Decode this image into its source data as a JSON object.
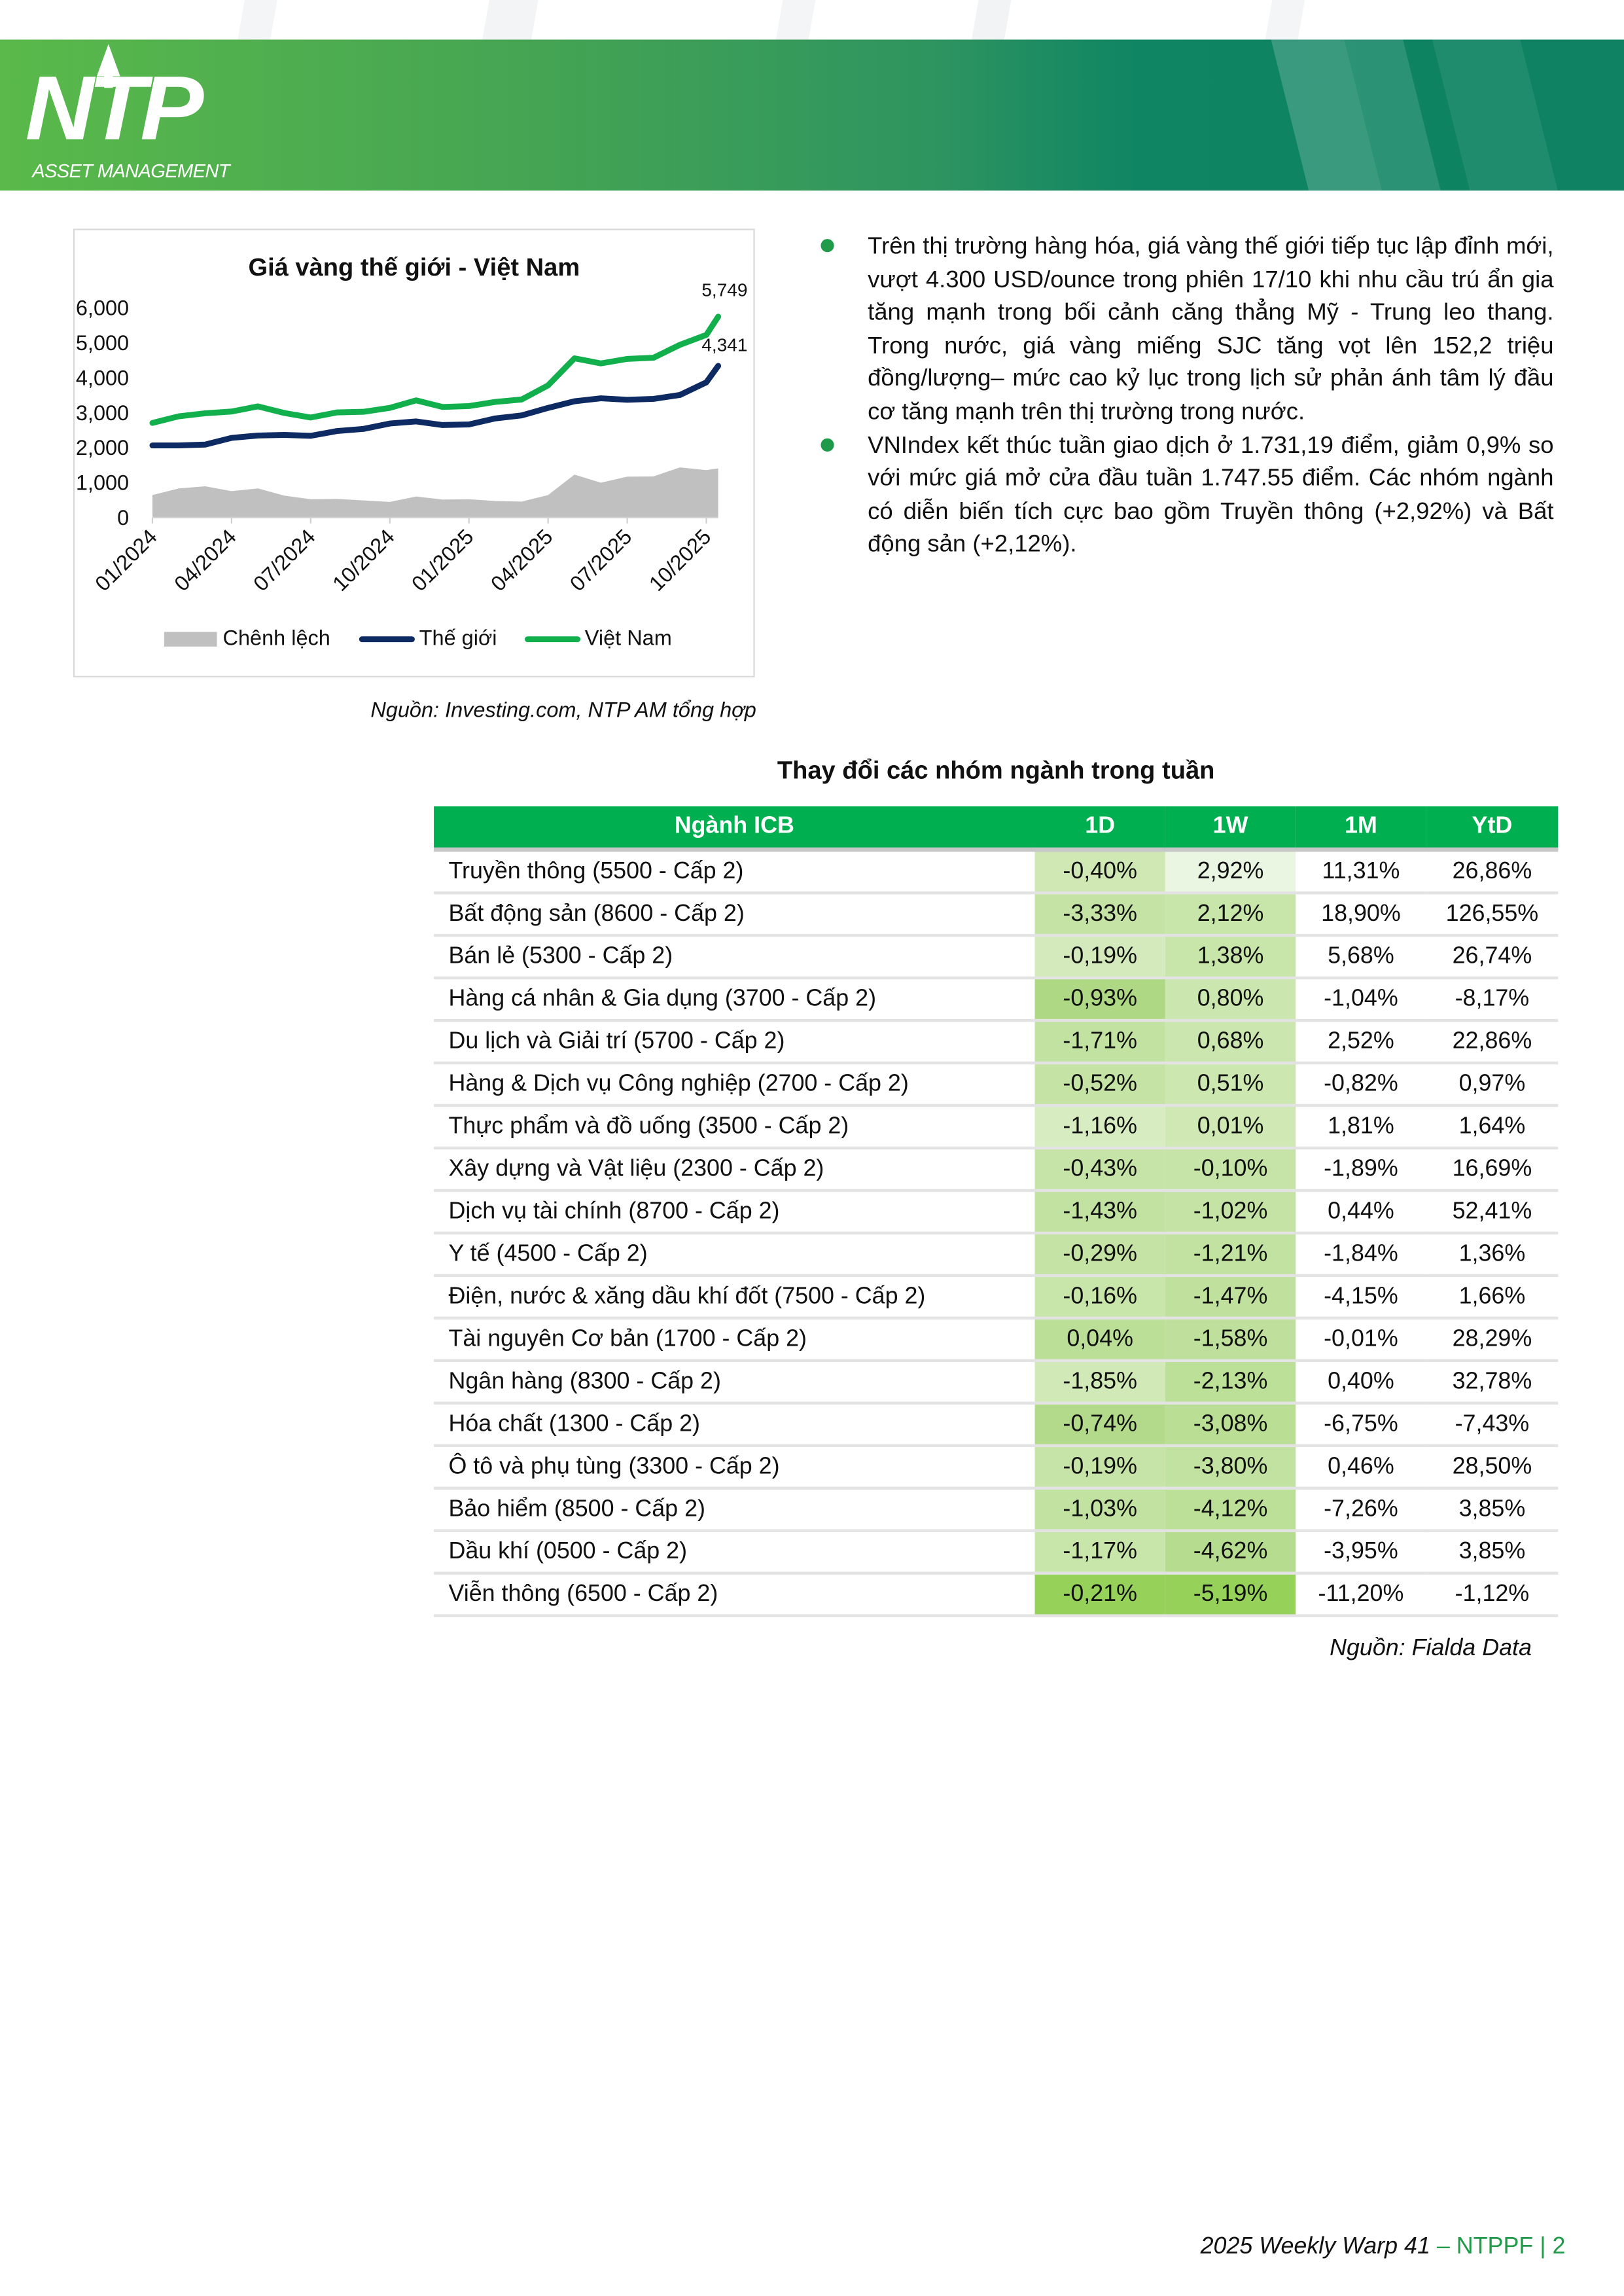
{
  "header": {
    "logo_text": "NTP",
    "logo_subtext": "ASSET MANAGEMENT"
  },
  "chart_data": {
    "type": "line",
    "title": "Giá vàng thế giới - Việt Nam",
    "x": [
      "2024-01",
      "2024-02",
      "2024-03",
      "2024-04",
      "2024-05",
      "2024-06",
      "2024-07",
      "2024-08",
      "2024-09",
      "2024-10",
      "2024-11",
      "2024-12",
      "2025-01",
      "2025-02",
      "2025-03",
      "2025-04",
      "2025-05",
      "2025-06",
      "2025-07",
      "2025-08",
      "2025-09",
      "2025-10",
      "2025-10-17"
    ],
    "x_tick_labels": [
      "01/2024",
      "04/2024",
      "07/2024",
      "10/2024",
      "01/2025",
      "04/2025",
      "07/2025",
      "10/2025"
    ],
    "y_tick_labels": [
      "0",
      "1,000",
      "2,000",
      "3,000",
      "4,000",
      "5,000",
      "6,000"
    ],
    "ylim": [
      0,
      6000
    ],
    "series": [
      {
        "name": "Chênh lệch",
        "kind": "area",
        "color": "#c0c0c0",
        "values": [
          644,
          834,
          895,
          756,
          834,
          627,
          524,
          533,
          490,
          447,
          602,
          516,
          525,
          473,
          456,
          645,
          1230,
          998,
          1170,
          1178,
          1436,
          1359,
          1408
        ]
      },
      {
        "name": "Thế giới",
        "kind": "line",
        "color": "#0d2a63",
        "values": [
          2064,
          2064,
          2089,
          2279,
          2347,
          2365,
          2339,
          2476,
          2537,
          2691,
          2751,
          2648,
          2665,
          2837,
          2923,
          3138,
          3327,
          3413,
          3370,
          3396,
          3508,
          3869,
          4341
        ]
      },
      {
        "name": "Việt Nam",
        "kind": "line",
        "color": "#12b04c",
        "values": [
          2708,
          2898,
          2984,
          3035,
          3181,
          2992,
          2863,
          3009,
          3027,
          3138,
          3353,
          3164,
          3190,
          3310,
          3379,
          3783,
          4557,
          4411,
          4540,
          4574,
          4944,
          5228,
          5749
        ]
      }
    ],
    "data_labels": {
      "vietnam_last": "5,749",
      "world_last": "4,341"
    },
    "legend": "bottom",
    "grid": false
  },
  "chart_source": "Nguồn: Investing.com, NTP AM tổng hợp",
  "bullets": [
    "Trên thị trường hàng hóa, giá vàng thế giới tiếp tục lập đỉnh mới, vượt 4.300 USD/ounce trong phiên 17/10 khi nhu cầu trú ẩn gia tăng mạnh trong bối cảnh căng thẳng Mỹ - Trung leo thang. Trong nước, giá vàng miếng SJC tăng vọt lên 152,2 triệu đồng/lượng– mức cao kỷ lục trong lịch sử phản ánh tâm lý đầu cơ tăng mạnh trên thị trường trong nước.",
    "VNIndex kết thúc tuần giao dịch ở 1.731,19 điểm, giảm 0,9% so với mức giá mở cửa đầu tuần 1.747.55 điểm. Các nhóm ngành có diễn biến tích cực bao gồm Truyền thông (+2,92%) và Bất động sản (+2,12%)."
  ],
  "table": {
    "title": "Thay đổi các nhóm ngành trong tuần",
    "header_color": "#00b050",
    "columns": [
      "Ngành ICB",
      "1D",
      "1W",
      "1M",
      "YtD"
    ],
    "rows": [
      {
        "name": "Truyền thông (5500 - Cấp 2)",
        "d1": "-0,40%",
        "w1": "2,92%",
        "m1": "11,31%",
        "ytd": "26,86%",
        "d1_bg": "#cfe8b4",
        "w1_bg": "#eaf5e2"
      },
      {
        "name": "Bất động sản (8600 - Cấp 2)",
        "d1": "-3,33%",
        "w1": "2,12%",
        "m1": "18,90%",
        "ytd": "126,55%",
        "d1_bg": "#c4e3a4",
        "w1_bg": "#c8e5aa"
      },
      {
        "name": "Bán lẻ (5300 - Cấp 2)",
        "d1": "-0,19%",
        "w1": "1,38%",
        "m1": "5,68%",
        "ytd": "26,74%",
        "d1_bg": "#d4eabc",
        "w1_bg": "#c8e5aa"
      },
      {
        "name": "Hàng cá nhân & Gia dụng (3700 - Cấp 2)",
        "d1": "-0,93%",
        "w1": "0,80%",
        "m1": "-1,04%",
        "ytd": "-8,17%",
        "d1_bg": "#aed884",
        "w1_bg": "#cbe6ae"
      },
      {
        "name": "Du lịch và Giải trí (5700 - Cấp 2)",
        "d1": "-1,71%",
        "w1": "0,68%",
        "m1": "2,52%",
        "ytd": "22,86%",
        "d1_bg": "#c2e2a2",
        "w1_bg": "#cbe6ae"
      },
      {
        "name": "Hàng & Dịch vụ Công nghiệp (2700 - Cấp 2)",
        "d1": "-0,52%",
        "w1": "0,51%",
        "m1": "-0,82%",
        "ytd": "0,97%",
        "d1_bg": "#c4e3a4",
        "w1_bg": "#cde7b1"
      },
      {
        "name": "Thực phẩm và đồ uống (3500 - Cấp 2)",
        "d1": "-1,16%",
        "w1": "0,01%",
        "m1": "1,81%",
        "ytd": "1,64%",
        "d1_bg": "#d8ecc2",
        "w1_bg": "#cfe8b4"
      },
      {
        "name": "Xây dựng và Vật liệu (2300 - Cấp 2)",
        "d1": "-0,43%",
        "w1": "-0,10%",
        "m1": "-1,89%",
        "ytd": "16,69%",
        "d1_bg": "#c6e4a7",
        "w1_bg": "#c6e4a7"
      },
      {
        "name": "Dịch vụ tài chính (8700 - Cấp 2)",
        "d1": "-1,43%",
        "w1": "-1,02%",
        "m1": "0,44%",
        "ytd": "52,41%",
        "d1_bg": "#c2e2a1",
        "w1_bg": "#c4e3a4"
      },
      {
        "name": "Y tế (4500 - Cấp 2)",
        "d1": "-0,29%",
        "w1": "-1,21%",
        "m1": "-1,84%",
        "ytd": "1,36%",
        "d1_bg": "#c4e3a4",
        "w1_bg": "#c2e2a1"
      },
      {
        "name": "Điện, nước & xăng dầu khí đốt (7500 - Cấp 2)",
        "d1": "-0,16%",
        "w1": "-1,47%",
        "m1": "-4,15%",
        "ytd": "1,66%",
        "d1_bg": "#c8e5aa",
        "w1_bg": "#c0e19e"
      },
      {
        "name": "Tài nguyên Cơ bản (1700 - Cấp 2)",
        "d1": "0,04%",
        "w1": "-1,58%",
        "m1": "-0,01%",
        "ytd": "28,29%",
        "d1_bg": "#bcdf98",
        "w1_bg": "#bfe09c"
      },
      {
        "name": "Ngân hàng (8300 - Cấp 2)",
        "d1": "-1,85%",
        "w1": "-2,13%",
        "m1": "0,40%",
        "ytd": "32,78%",
        "d1_bg": "#d0e9b6",
        "w1_bg": "#bde099"
      },
      {
        "name": "Hóa chất (1300 - Cấp 2)",
        "d1": "-0,74%",
        "w1": "-3,08%",
        "m1": "-6,75%",
        "ytd": "-7,43%",
        "d1_bg": "#b3da8b",
        "w1_bg": "#b9de94"
      },
      {
        "name": "Ô tô và phụ tùng (3300 - Cấp 2)",
        "d1": "-0,19%",
        "w1": "-3,80%",
        "m1": "0,46%",
        "ytd": "28,50%",
        "d1_bg": "#c6e4a7",
        "w1_bg": "#c2e2a1"
      },
      {
        "name": "Bảo hiểm (8500 - Cấp 2)",
        "d1": "-1,03%",
        "w1": "-4,12%",
        "m1": "-7,26%",
        "ytd": "3,85%",
        "d1_bg": "#c2e2a1",
        "w1_bg": "#bde099"
      },
      {
        "name": "Dầu khí (0500 - Cấp 2)",
        "d1": "-1,17%",
        "w1": "-4,62%",
        "m1": "-3,95%",
        "ytd": "3,85%",
        "d1_bg": "#c8e5aa",
        "w1_bg": "#b6dc8f"
      },
      {
        "name": "Viễn thông (6500 - Cấp 2)",
        "d1": "-0,21%",
        "w1": "-5,19%",
        "m1": "-11,20%",
        "ytd": "-1,12%",
        "d1_bg": "#96d259",
        "w1_bg": "#96d259"
      }
    ],
    "source": "Nguồn: Fialda Data"
  },
  "footer": {
    "report": "2025 Weekly Warp 41",
    "suffix": " – NTPPF | 2"
  }
}
